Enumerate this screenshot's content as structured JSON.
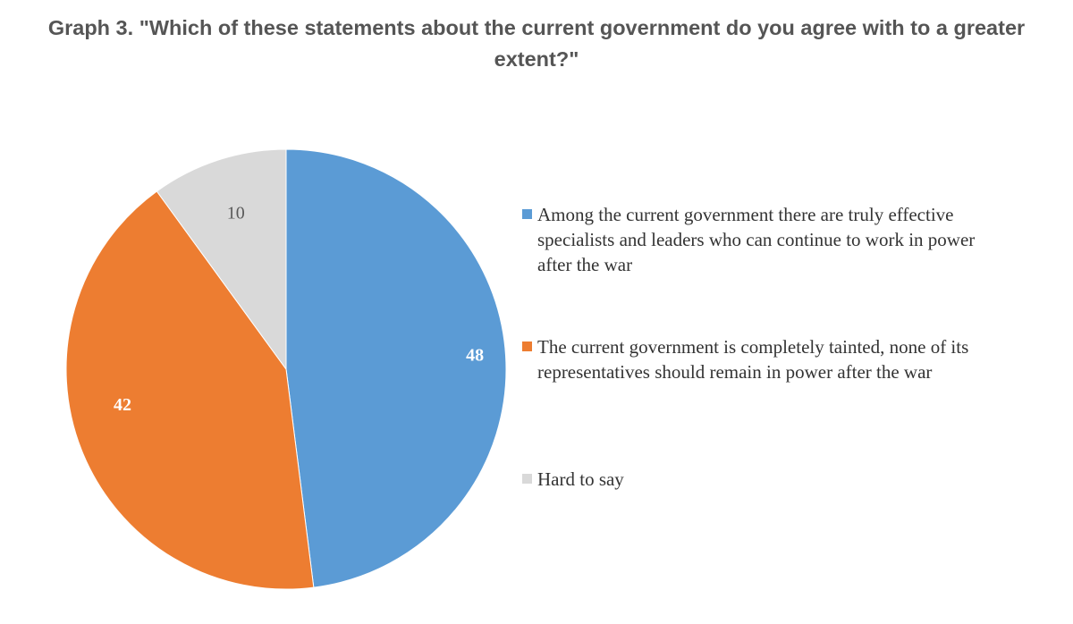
{
  "chart_data": {
    "type": "pie",
    "title": "Graph 3. \"Which of these statements about the current government do you agree with to a greater extent?\"",
    "slices": [
      {
        "label": "Among the current government there are truly effective specialists and leaders who can continue to work in power after the war",
        "value": 48,
        "display": "48",
        "color": "#5b9bd5",
        "label_color": "#ffffff"
      },
      {
        "label": "The current government is completely tainted, none of its representatives should remain in power after the war",
        "value": 42,
        "display": "42",
        "color": "#ed7d31",
        "label_color": "#ffffff"
      },
      {
        "label": "Hard to say",
        "value": 10,
        "display": "10",
        "color": "#d9d9d9",
        "label_color": "#595959"
      }
    ],
    "legend_position": "right"
  }
}
